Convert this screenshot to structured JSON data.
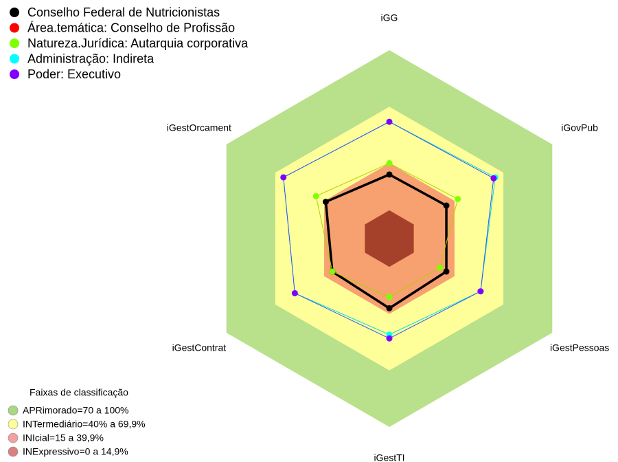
{
  "chart_data": {
    "type": "radar",
    "axes": [
      "iGG",
      "iGovPub",
      "iGestPessoas",
      "iGestTI",
      "iGestContrat",
      "iGestOrcament"
    ],
    "rlim": [
      0,
      100
    ],
    "bands_title": "Faixas de classificação",
    "bands": [
      {
        "name": "APRimorado=70 a 100%",
        "from": 70,
        "to": 100,
        "color": "#b9e08b",
        "legend_color": "#a8d880"
      },
      {
        "name": "INTermediário=40% a 69,9%",
        "from": 40,
        "to": 70,
        "color": "#ffff99",
        "legend_color": "#ffff99"
      },
      {
        "name": "INIcial=15 a 39,9%",
        "from": 15,
        "to": 40,
        "color": "#f7a070",
        "legend_color": "#f4a0a0"
      },
      {
        "name": "INExpressivo=0 a 14,9%",
        "from": 0,
        "to": 15,
        "color": "#a5402a",
        "legend_color": "#d98080"
      }
    ],
    "series": [
      {
        "name": "Conselho Federal de Nutricionistas",
        "color": "#000000",
        "line_color": "#000000",
        "line_width": 3.5,
        "values": [
          34,
          35,
          35,
          37,
          35,
          39
        ]
      },
      {
        "name": "Área.temática: Conselho de Profissão",
        "color": "#ff0000",
        "line_color": "#ff0000",
        "line_width": 1,
        "values": [
          null,
          null,
          null,
          null,
          null,
          null
        ]
      },
      {
        "name": "Natureza.Jurídica: Autarquia corporativa",
        "color": "#7fff00",
        "line_color": "#b0d000",
        "line_width": 1,
        "values": [
          40,
          42,
          31,
          31,
          35,
          45
        ]
      },
      {
        "name": "Administração: Indireta",
        "color": "#00ffff",
        "line_color": "#00e0e0",
        "line_width": 1,
        "values": [
          62,
          65,
          56,
          51,
          58,
          65
        ]
      },
      {
        "name": "Poder: Executivo",
        "color": "#8000ff",
        "line_color": "#3050ff",
        "line_width": 1,
        "values": [
          62,
          64,
          56,
          53,
          58,
          65
        ]
      }
    ]
  }
}
